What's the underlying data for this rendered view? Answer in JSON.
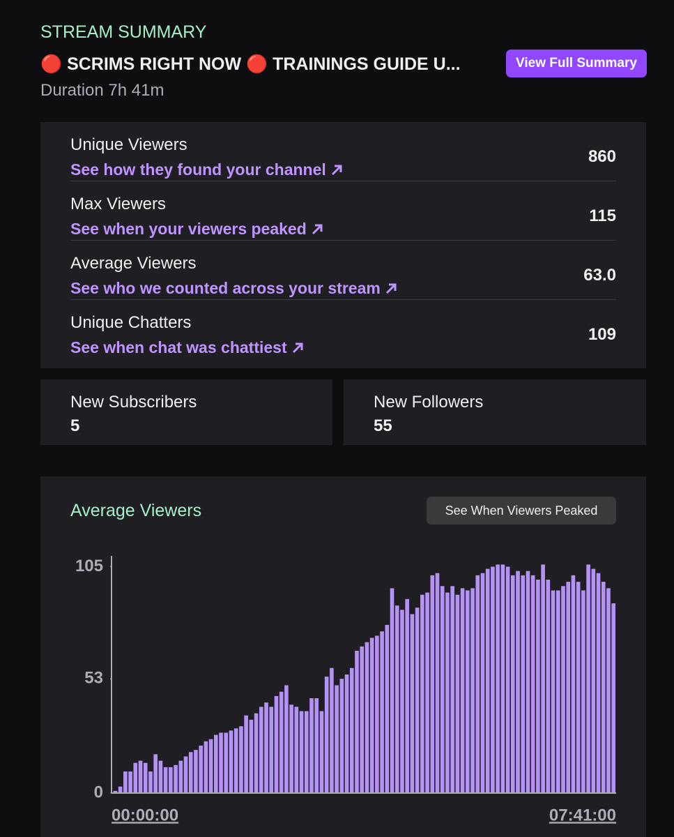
{
  "header": {
    "title": "STREAM SUMMARY",
    "stream_title": "🔴 SCRIMS RIGHT NOW 🔴 TRAININGS GUIDE U...",
    "duration": "Duration 7h 41m",
    "button": "View Full Summary"
  },
  "stats": [
    {
      "label": "Unique Viewers",
      "link": "See how they found your channel",
      "value": "860"
    },
    {
      "label": "Max Viewers",
      "link": "See when your viewers peaked",
      "value": "115"
    },
    {
      "label": "Average Viewers",
      "link": "See who we counted across your stream",
      "value": "63.0"
    },
    {
      "label": "Unique Chatters",
      "link": "See when chat was chattiest",
      "value": "109"
    }
  ],
  "cards": [
    {
      "label": "New Subscribers",
      "value": "5"
    },
    {
      "label": "New Followers",
      "value": "55"
    }
  ],
  "chart_data": {
    "type": "bar",
    "title": "Average Viewers",
    "button": "See When Viewers Peaked",
    "color": "#b592f5",
    "categories": [
      "00:00:00",
      null,
      null,
      null,
      null,
      null,
      null,
      null,
      null,
      null,
      null,
      null,
      null,
      null,
      null,
      null,
      null,
      null,
      null,
      null,
      null,
      null,
      null,
      null,
      null,
      null,
      null,
      null,
      null,
      null,
      null,
      null,
      null,
      null,
      null,
      null,
      null,
      null,
      null,
      null,
      null,
      null,
      null,
      null,
      null,
      null,
      null,
      null,
      null,
      null,
      null,
      null,
      null,
      null,
      null,
      null,
      null,
      null,
      null,
      null,
      null,
      null,
      null,
      null,
      null,
      null,
      null,
      null,
      null,
      null,
      null,
      null,
      null,
      null,
      null,
      null,
      null,
      null,
      null,
      null,
      null,
      null,
      null,
      null,
      null,
      null,
      null,
      null,
      null,
      null,
      null,
      null,
      null,
      null,
      null,
      null,
      null,
      null,
      null,
      "07:41:00"
    ],
    "values": [
      1,
      3,
      10,
      10,
      14,
      15,
      14,
      10,
      18,
      15,
      12,
      12,
      13,
      15,
      17,
      19,
      20,
      22,
      24,
      25,
      27,
      28,
      28,
      29,
      30,
      31,
      36,
      34,
      37,
      40,
      42,
      40,
      45,
      47,
      50,
      41,
      40,
      38,
      38,
      44,
      44,
      38,
      54,
      58,
      50,
      53,
      55,
      58,
      66,
      68,
      70,
      72,
      73,
      75,
      78,
      95,
      87,
      85,
      90,
      83,
      86,
      92,
      93,
      101,
      102,
      96,
      93,
      96,
      92,
      95,
      94,
      95,
      101,
      102,
      104,
      105,
      106,
      106,
      105,
      101,
      103,
      101,
      103,
      101,
      99,
      106,
      99,
      94,
      94,
      96,
      98,
      101,
      98,
      94,
      106,
      104,
      102,
      98,
      95,
      88
    ],
    "ylim": [
      0,
      110
    ],
    "yticks": [
      0,
      53,
      105
    ]
  }
}
